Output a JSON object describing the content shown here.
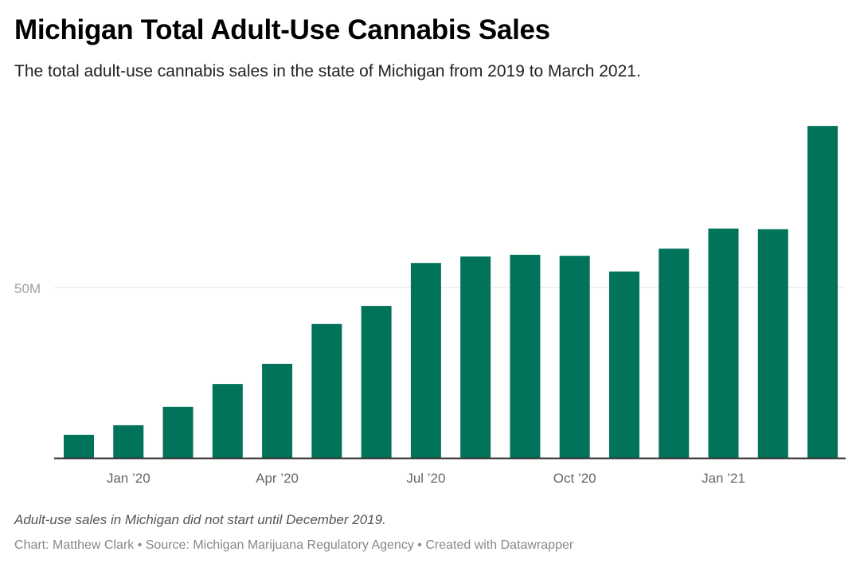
{
  "chart_data": {
    "type": "bar",
    "title": "Michigan Total Adult-Use Cannabis Sales",
    "subtitle": "The total adult-use cannabis sales in the state of Michigan from 2019 to March 2021.",
    "categories": [
      "Dec 2019",
      "Jan 2020",
      "Feb 2020",
      "Mar 2020",
      "Apr 2020",
      "May 2020",
      "Jun 2020",
      "Jul 2020",
      "Aug 2020",
      "Sep 2020",
      "Oct 2020",
      "Nov 2020",
      "Dec 2020",
      "Jan 2021",
      "Feb 2021",
      "Mar 2021"
    ],
    "values": [
      6.8,
      9.6,
      15.0,
      21.7,
      27.6,
      39.3,
      44.6,
      57.2,
      59.1,
      59.6,
      59.3,
      54.7,
      61.4,
      67.3,
      67.1,
      97.4
    ],
    "unit": "USD millions",
    "xlabel": "",
    "ylabel": "",
    "ylim": [
      0,
      100
    ],
    "yticks": [
      {
        "value": 50,
        "label": "50M"
      }
    ],
    "xticks": [
      {
        "index": 1,
        "label": "Jan ’20"
      },
      {
        "index": 4,
        "label": "Apr ’20"
      },
      {
        "index": 7,
        "label": "Jul ’20"
      },
      {
        "index": 10,
        "label": "Oct ’20"
      },
      {
        "index": 13,
        "label": "Jan ’21"
      }
    ],
    "grid": true,
    "bar_color": "#00735a",
    "notes": "Adult-use sales in Michigan did not start until December 2019.",
    "byline": "Chart: Matthew Clark • Source: Michigan Marijuana Regulatory Agency • Created with Datawrapper"
  }
}
